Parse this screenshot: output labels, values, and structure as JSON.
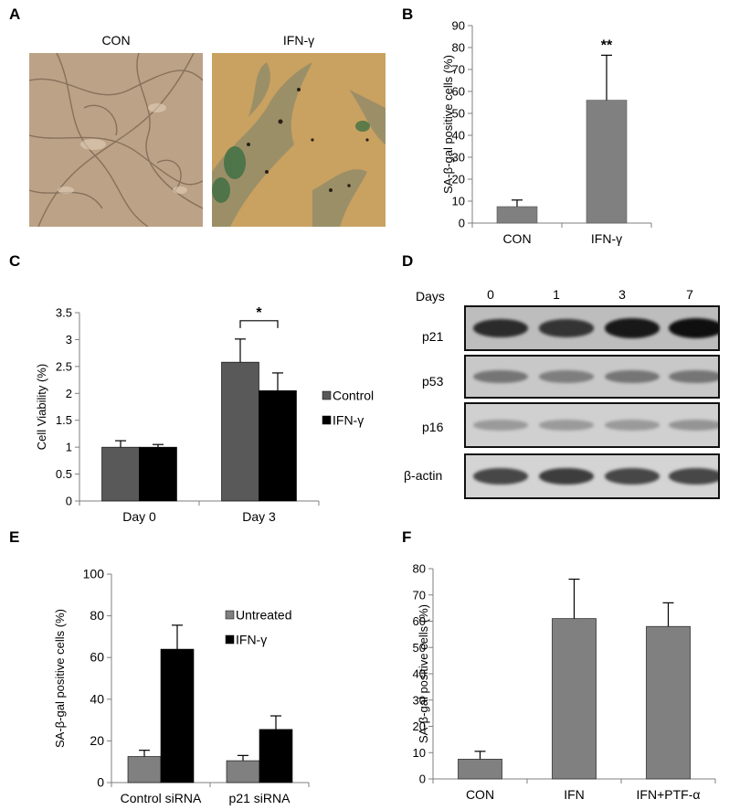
{
  "panel_letters": {
    "A": "A",
    "B": "B",
    "C": "C",
    "D": "D",
    "E": "E",
    "F": "F"
  },
  "panel_a": {
    "con_label": "CON",
    "ifn_label": "IFN-γ"
  },
  "panel_d": {
    "days_label": "Days",
    "lanes": [
      "0",
      "1",
      "3",
      "7"
    ],
    "rows": [
      {
        "label": "p21",
        "intensity": [
          0.85,
          0.8,
          0.95,
          1.0
        ]
      },
      {
        "label": "p53",
        "intensity": [
          0.45,
          0.4,
          0.45,
          0.45
        ]
      },
      {
        "label": "p16",
        "intensity": [
          0.25,
          0.25,
          0.25,
          0.28
        ]
      },
      {
        "label": "β-actin",
        "intensity": [
          0.7,
          0.75,
          0.7,
          0.7
        ]
      }
    ]
  },
  "chart_data": [
    {
      "panel": "B",
      "type": "bar",
      "categories": [
        "CON",
        "IFN-γ"
      ],
      "values": [
        7.5,
        56
      ],
      "errors": [
        3,
        20.5
      ],
      "ylabel": "SA-β-gal positive cells  (%)",
      "ylim": [
        0,
        90
      ],
      "yticks": [
        0,
        10,
        20,
        30,
        40,
        50,
        60,
        70,
        80,
        90
      ],
      "annotations": [
        {
          "category": "IFN-γ",
          "text": "**"
        }
      ],
      "color": "#808080"
    },
    {
      "panel": "C",
      "type": "bar",
      "categories": [
        "Day 0",
        "Day 3"
      ],
      "ylabel": "Cell Viability (%)",
      "ylim": [
        0,
        3.5
      ],
      "yticks": [
        0,
        0.5,
        1,
        1.5,
        2,
        2.5,
        3,
        3.5
      ],
      "series": [
        {
          "name": "Control",
          "values": [
            1,
            2.58
          ],
          "errors": [
            0.12,
            0.43
          ],
          "color": "#595959"
        },
        {
          "name": "IFN-γ",
          "values": [
            1,
            2.05
          ],
          "errors": [
            0.05,
            0.33
          ],
          "color": "#000000"
        }
      ],
      "annotation": {
        "text": "*",
        "category": "Day 3"
      },
      "legend": "right"
    },
    {
      "panel": "E",
      "type": "bar",
      "categories": [
        "Control siRNA",
        "p21 siRNA"
      ],
      "ylabel": "SA-β-gal positive cells (%)",
      "ylim": [
        0,
        100
      ],
      "yticks": [
        0,
        20,
        40,
        60,
        80,
        100
      ],
      "series": [
        {
          "name": "Untreated",
          "values": [
            12.5,
            10.5
          ],
          "errors": [
            3,
            2.5
          ],
          "color": "#808080"
        },
        {
          "name": "IFN-γ",
          "values": [
            64,
            25.5
          ],
          "errors": [
            11.5,
            6.5
          ],
          "color": "#000000"
        }
      ],
      "legend": "top-right"
    },
    {
      "panel": "F",
      "type": "bar",
      "categories": [
        "CON",
        "IFN",
        "IFN+PTF-α"
      ],
      "values": [
        7.5,
        61,
        58
      ],
      "errors": [
        3,
        15,
        9
      ],
      "ylabel": "SA-β-gal positive cells (%)",
      "ylim": [
        0,
        80
      ],
      "yticks": [
        0,
        10,
        20,
        30,
        40,
        50,
        60,
        70,
        80
      ],
      "color": "#808080"
    }
  ]
}
